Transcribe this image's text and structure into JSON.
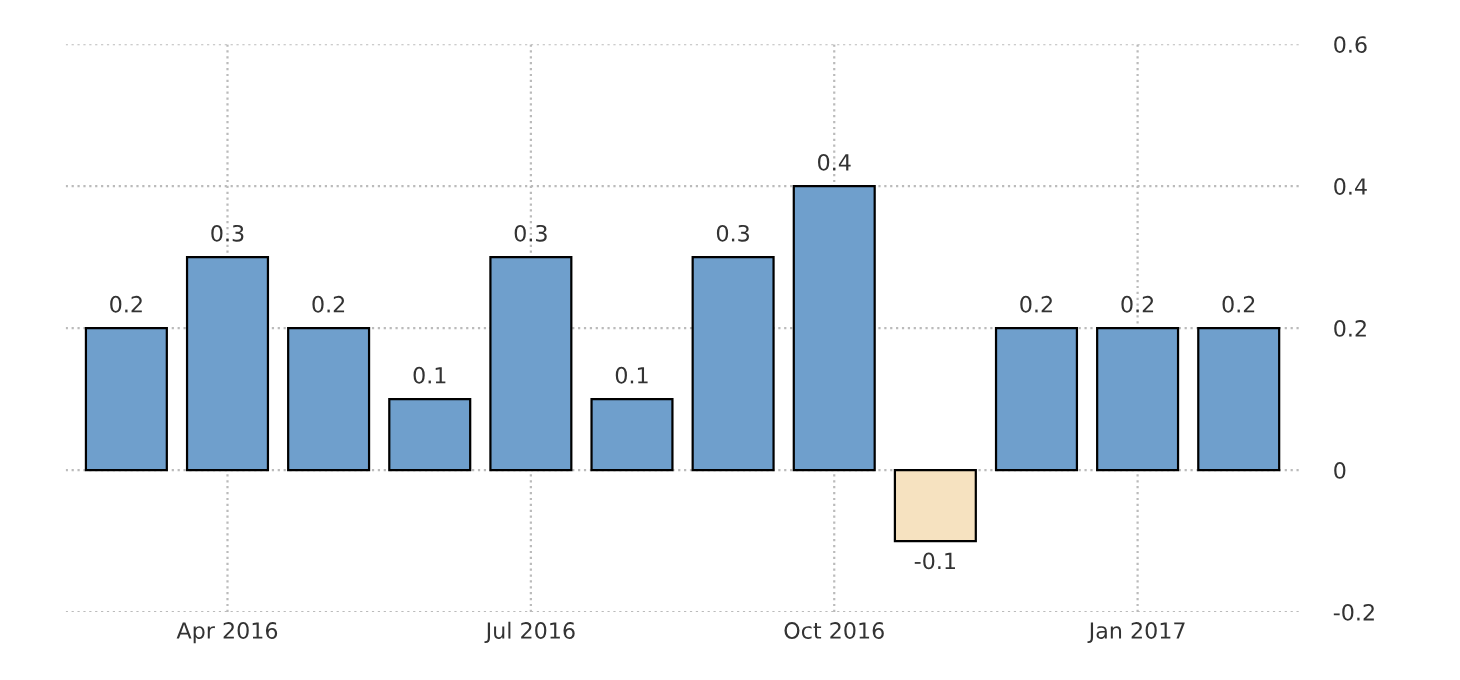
{
  "chart_data": {
    "type": "bar",
    "categories": [
      null,
      "Apr 2016",
      null,
      null,
      "Jul 2016",
      null,
      null,
      "Oct 2016",
      null,
      null,
      "Jan 2017",
      null
    ],
    "values": [
      0.2,
      0.3,
      0.2,
      0.1,
      0.3,
      0.1,
      0.3,
      0.4,
      -0.1,
      0.2,
      0.2,
      0.2
    ],
    "colors": [
      "#6f9fcc",
      "#6f9fcc",
      "#6f9fcc",
      "#6f9fcc",
      "#6f9fcc",
      "#6f9fcc",
      "#6f9fcc",
      "#6f9fcc",
      "#f6e2c0",
      "#6f9fcc",
      "#6f9fcc",
      "#6f9fcc"
    ],
    "ylim": [
      -0.2,
      0.6
    ],
    "yticks": [
      {
        "value": -0.2,
        "label": "-0.2"
      },
      0,
      0.2,
      0.4,
      0.6
    ],
    "grid": true,
    "data_labels": true
  }
}
